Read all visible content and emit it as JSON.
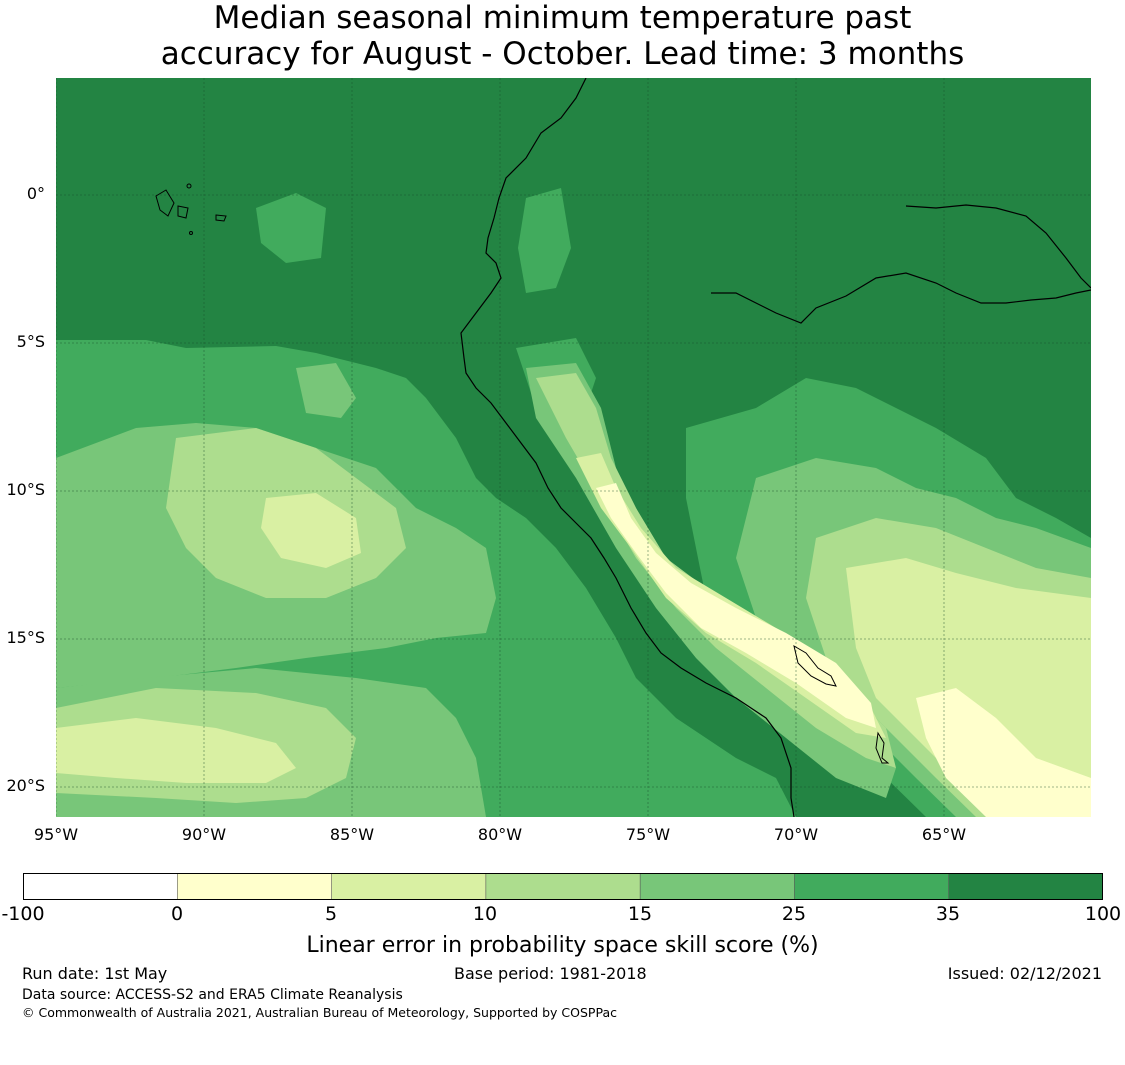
{
  "title_line1": "Median seasonal minimum temperature past",
  "title_line2": "accuracy for August - October. Lead time: 3 months",
  "lat_labels": [
    "0°",
    "5°S",
    "10°S",
    "15°S",
    "20°S"
  ],
  "lon_labels": [
    "95°W",
    "90°W",
    "85°W",
    "80°W",
    "75°W",
    "70°W",
    "65°W"
  ],
  "colorbar": {
    "ticks": [
      "-100",
      "0",
      "5",
      "10",
      "15",
      "25",
      "35",
      "100"
    ],
    "colors": [
      "#ffffff",
      "#ffffcc",
      "#d9f0a3",
      "#addd8e",
      "#78c679",
      "#41ab5d",
      "#238443"
    ],
    "label": "Linear error in probability space skill score (%)"
  },
  "footer": {
    "run_date": "Run date: 1st May",
    "base_period": "Base period: 1981-2018",
    "issued": "Issued: 02/12/2021",
    "data_source": "Data source: ACCESS-S2 and ERA5 Climate Reanalysis",
    "copyright": "© Commonwealth of Australia 2021, Australian Bureau of Meteorology, Supported by COSPPac"
  }
}
